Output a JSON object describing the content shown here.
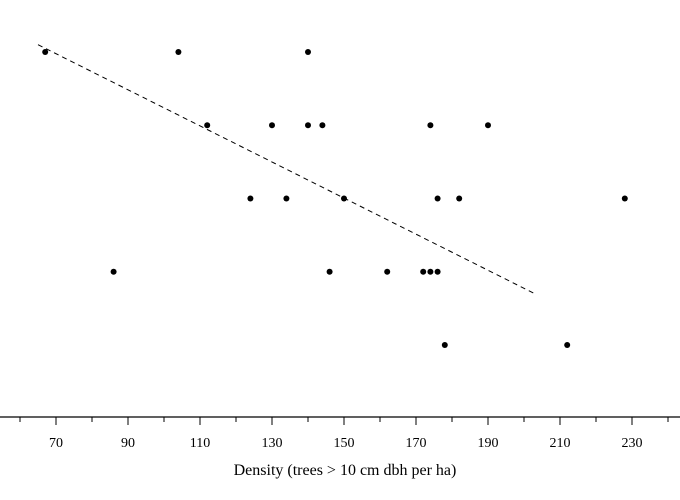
{
  "chart_data": {
    "type": "scatter",
    "xlabel": "Density (trees > 10 cm dbh per ha)",
    "ylabel": "",
    "title": "",
    "xlim": [
      55,
      240
    ],
    "x_ticks": [
      70,
      90,
      110,
      130,
      150,
      170,
      190,
      210,
      230
    ],
    "y_levels": [
      1,
      2,
      3,
      4,
      5
    ],
    "grid": false,
    "legend": "none",
    "points": [
      {
        "x": 67,
        "y": 5
      },
      {
        "x": 104,
        "y": 5
      },
      {
        "x": 140,
        "y": 5
      },
      {
        "x": 112,
        "y": 4
      },
      {
        "x": 130,
        "y": 4
      },
      {
        "x": 140,
        "y": 4
      },
      {
        "x": 144,
        "y": 4
      },
      {
        "x": 174,
        "y": 4
      },
      {
        "x": 190,
        "y": 4
      },
      {
        "x": 124,
        "y": 3
      },
      {
        "x": 134,
        "y": 3
      },
      {
        "x": 150,
        "y": 3
      },
      {
        "x": 176,
        "y": 3
      },
      {
        "x": 182,
        "y": 3
      },
      {
        "x": 228,
        "y": 3
      },
      {
        "x": 86,
        "y": 2
      },
      {
        "x": 146,
        "y": 2
      },
      {
        "x": 162,
        "y": 2
      },
      {
        "x": 172,
        "y": 2
      },
      {
        "x": 174,
        "y": 2
      },
      {
        "x": 176,
        "y": 2
      },
      {
        "x": 178,
        "y": 1
      },
      {
        "x": 212,
        "y": 1
      }
    ],
    "trend_line": {
      "style": "dashed",
      "x1": 65,
      "y1": 5.1,
      "x2": 203,
      "y2": 1.7
    },
    "colors": {
      "points": "#000000",
      "axis": "#000000",
      "trend": "#000000"
    }
  }
}
